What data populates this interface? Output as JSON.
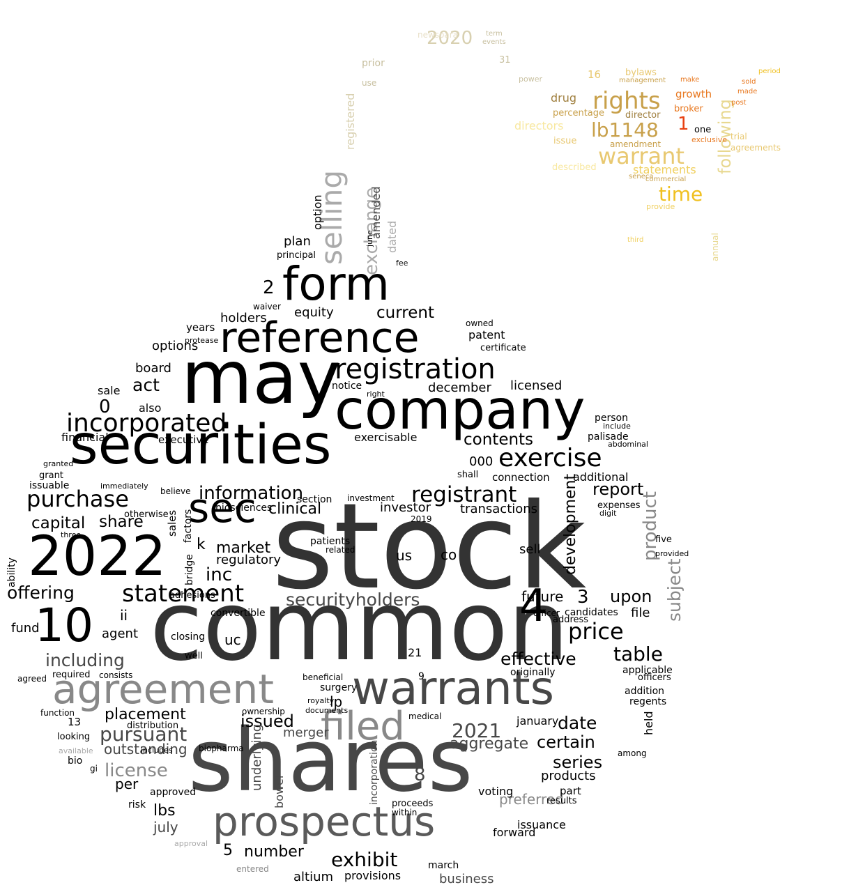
{
  "words": [
    {
      "text": "stock",
      "color": "#333333"
    },
    {
      "text": "common",
      "color": "#333333"
    },
    {
      "text": "shares",
      "color": "#474747"
    },
    {
      "text": "may",
      "color": "#000000"
    },
    {
      "text": "securities",
      "color": "#000000"
    },
    {
      "text": "company",
      "color": "#000000"
    },
    {
      "text": "form",
      "color": "#000000"
    },
    {
      "text": "reference",
      "color": "#000000"
    },
    {
      "text": "2022",
      "color": "#000000"
    },
    {
      "text": "agreement",
      "color": "#888888"
    },
    {
      "text": "warrants",
      "color": "#474747"
    },
    {
      "text": "prospectus",
      "color": "#5a5a5a"
    },
    {
      "text": "filed",
      "color": "#888888"
    },
    {
      "text": "registration",
      "color": "#000000"
    },
    {
      "text": "10",
      "color": "#000000"
    },
    {
      "text": "4",
      "color": "#000000"
    },
    {
      "text": "sec",
      "color": "#000000"
    },
    {
      "text": "exercise",
      "color": "#000000"
    },
    {
      "text": "incorporated",
      "color": "#000000"
    },
    {
      "text": "purchase",
      "color": "#000000"
    },
    {
      "text": "statement",
      "color": "#000000"
    },
    {
      "text": "registrant",
      "color": "#000000"
    },
    {
      "text": "information",
      "color": "#000000"
    },
    {
      "text": "securityholders",
      "color": "#474747"
    },
    {
      "text": "price",
      "color": "#000000"
    },
    {
      "text": "table",
      "color": "#000000"
    },
    {
      "text": "exhibit",
      "color": "#000000"
    },
    {
      "text": "pursuant",
      "color": "#474747"
    },
    {
      "text": "including",
      "color": "#474747"
    },
    {
      "text": "license",
      "color": "#888888"
    },
    {
      "text": "selling",
      "color": "#aaaaaa"
    },
    {
      "text": "exchange",
      "color": "#aaaaaa"
    },
    {
      "text": "rights",
      "color": "#c8a04a"
    },
    {
      "text": "warrant",
      "color": "#e8c870"
    },
    {
      "text": "lb1148",
      "color": "#c8a04a"
    },
    {
      "text": "time",
      "color": "#f0c020"
    },
    {
      "text": "2020",
      "color": "#d8d0b0"
    },
    {
      "text": "following",
      "color": "#e8d890"
    },
    {
      "text": "contents",
      "color": "#000000"
    },
    {
      "text": "effective",
      "color": "#000000"
    },
    {
      "text": "date",
      "color": "#000000"
    },
    {
      "text": "offering",
      "color": "#000000"
    },
    {
      "text": "capital",
      "color": "#000000"
    },
    {
      "text": "share",
      "color": "#000000"
    },
    {
      "text": "current",
      "color": "#000000"
    },
    {
      "text": "act",
      "color": "#000000"
    },
    {
      "text": "inc",
      "color": "#000000"
    },
    {
      "text": "clinical",
      "color": "#000000"
    },
    {
      "text": "report",
      "color": "#000000"
    },
    {
      "text": "upon",
      "color": "#000000"
    },
    {
      "text": "certain",
      "color": "#000000"
    },
    {
      "text": "series",
      "color": "#000000"
    },
    {
      "text": "placement",
      "color": "#000000"
    },
    {
      "text": "issued",
      "color": "#000000"
    },
    {
      "text": "number",
      "color": "#000000"
    },
    {
      "text": "aggregate",
      "color": "#474747"
    },
    {
      "text": "2021",
      "color": "#474747"
    },
    {
      "text": "product",
      "color": "#888888"
    },
    {
      "text": "subject",
      "color": "#888888"
    },
    {
      "text": "development",
      "color": "#000000"
    },
    {
      "text": "sell",
      "color": "#000000"
    },
    {
      "text": "market",
      "color": "#000000"
    },
    {
      "text": "financial",
      "color": "#000000"
    },
    {
      "text": "options",
      "color": "#000000"
    },
    {
      "text": "board",
      "color": "#000000"
    },
    {
      "text": "equity",
      "color": "#000000"
    },
    {
      "text": "holders",
      "color": "#000000"
    },
    {
      "text": "patent",
      "color": "#000000"
    },
    {
      "text": "licensed",
      "color": "#000000"
    },
    {
      "text": "december",
      "color": "#000000"
    },
    {
      "text": "exercisable",
      "color": "#000000"
    },
    {
      "text": "connection",
      "color": "#000000"
    },
    {
      "text": "additional",
      "color": "#000000"
    },
    {
      "text": "transactions",
      "color": "#000000"
    },
    {
      "text": "investor",
      "color": "#000000"
    },
    {
      "text": "regulatory",
      "color": "#000000"
    },
    {
      "text": "agent",
      "color": "#000000"
    },
    {
      "text": "fund",
      "color": "#000000"
    },
    {
      "text": "per",
      "color": "#000000"
    },
    {
      "text": "lbs",
      "color": "#000000"
    },
    {
      "text": "july",
      "color": "#474747"
    },
    {
      "text": "merger",
      "color": "#474747"
    },
    {
      "text": "business",
      "color": "#474747"
    },
    {
      "text": "preferred",
      "color": "#888888"
    },
    {
      "text": "future",
      "color": "#000000"
    },
    {
      "text": "file",
      "color": "#000000"
    },
    {
      "text": "products",
      "color": "#000000"
    },
    {
      "text": "held",
      "color": "#000000"
    },
    {
      "text": "underlying",
      "color": "#474747"
    },
    {
      "text": "bowel",
      "color": "#474747"
    },
    {
      "text": "outstanding",
      "color": "#474747"
    },
    {
      "text": "plan",
      "color": "#000000"
    },
    {
      "text": "option",
      "color": "#000000"
    },
    {
      "text": "amended",
      "color": "#474747"
    },
    {
      "text": "dated",
      "color": "#aaaaaa"
    },
    {
      "text": "registered",
      "color": "#d8d0b0"
    },
    {
      "text": "statements",
      "color": "#f0d060"
    },
    {
      "text": "directors",
      "color": "#f8e8a0"
    },
    {
      "text": "drug",
      "color": "#a08040"
    },
    {
      "text": "growth",
      "color": "#e87820"
    },
    {
      "text": "broker",
      "color": "#e87820"
    },
    {
      "text": "one",
      "color": "#000000"
    },
    {
      "text": "trial",
      "color": "#e8c870"
    },
    {
      "text": "agreements",
      "color": "#e8c870"
    },
    {
      "text": "bylaws",
      "color": "#e8c870"
    },
    {
      "text": "16",
      "color": "#e8c870"
    },
    {
      "text": "annual",
      "color": "#e8d890"
    },
    {
      "text": "prior",
      "color": "#c8c0a0"
    },
    {
      "text": "newsoara",
      "color": "#e8e0c8"
    },
    {
      "text": "use",
      "color": "#c8c0a0"
    },
    {
      "text": "31",
      "color": "#c8c0a0"
    },
    {
      "text": "term",
      "color": "#c8c0a0"
    },
    {
      "text": "events",
      "color": "#c8c0a0"
    },
    {
      "text": "percentage",
      "color": "#c8a04a"
    },
    {
      "text": "issue",
      "color": "#e8c870"
    },
    {
      "text": "amendment",
      "color": "#c8a04a"
    },
    {
      "text": "described",
      "color": "#f8e8a0"
    },
    {
      "text": "director",
      "color": "#a08040"
    },
    {
      "text": "provide",
      "color": "#f0d060"
    },
    {
      "text": "third",
      "color": "#f0d060"
    },
    {
      "text": "commercial",
      "color": "#c8a04a"
    },
    {
      "text": "seneca",
      "color": "#c8a04a"
    },
    {
      "text": "exclusive",
      "color": "#e87820"
    },
    {
      "text": "make",
      "color": "#e87820"
    },
    {
      "text": "post",
      "color": "#e87820"
    },
    {
      "text": "made",
      "color": "#e87820"
    },
    {
      "text": "sold",
      "color": "#e87820"
    },
    {
      "text": "period",
      "color": "#f0c020"
    },
    {
      "text": "management",
      "color": "#c8a04a"
    },
    {
      "text": "power",
      "color": "#c8c0a0"
    },
    {
      "text": "2",
      "color": "#000000"
    },
    {
      "text": "0",
      "color": "#000000"
    },
    {
      "text": "3",
      "color": "#000000"
    },
    {
      "text": "5",
      "color": "#000000"
    },
    {
      "text": "8",
      "color": "#474747"
    },
    {
      "text": "9",
      "color": "#000000"
    },
    {
      "text": "13",
      "color": "#000000"
    },
    {
      "text": "21",
      "color": "#000000"
    },
    {
      "text": "k",
      "color": "#000000"
    },
    {
      "text": "ii",
      "color": "#000000"
    },
    {
      "text": "uc",
      "color": "#000000"
    },
    {
      "text": "us",
      "color": "#000000"
    },
    {
      "text": "co",
      "color": "#000000"
    },
    {
      "text": "lp",
      "color": "#000000"
    },
    {
      "text": "000",
      "color": "#000000"
    },
    {
      "text": "altium",
      "color": "#000000"
    },
    {
      "text": "march",
      "color": "#000000"
    },
    {
      "text": "provisions",
      "color": "#000000"
    },
    {
      "text": "entered",
      "color": "#888888"
    },
    {
      "text": "january",
      "color": "#000000"
    },
    {
      "text": "issuance",
      "color": "#000000"
    },
    {
      "text": "forward",
      "color": "#000000"
    },
    {
      "text": "voting",
      "color": "#000000"
    },
    {
      "text": "part",
      "color": "#000000"
    },
    {
      "text": "results",
      "color": "#000000"
    },
    {
      "text": "originally",
      "color": "#000000"
    },
    {
      "text": "applicable",
      "color": "#000000"
    },
    {
      "text": "officers",
      "color": "#000000"
    },
    {
      "text": "addition",
      "color": "#000000"
    },
    {
      "text": "regents",
      "color": "#000000"
    },
    {
      "text": "among",
      "color": "#000000"
    },
    {
      "text": "person",
      "color": "#000000"
    },
    {
      "text": "include",
      "color": "#000000"
    },
    {
      "text": "palisade",
      "color": "#000000"
    },
    {
      "text": "abdominal",
      "color": "#000000"
    },
    {
      "text": "expenses",
      "color": "#000000"
    },
    {
      "text": "digit",
      "color": "#000000"
    },
    {
      "text": "five",
      "color": "#000000"
    },
    {
      "text": "provided",
      "color": "#000000"
    },
    {
      "text": "candidates",
      "color": "#000000"
    },
    {
      "text": "address",
      "color": "#000000"
    },
    {
      "text": "officer",
      "color": "#000000"
    },
    {
      "text": "2019",
      "color": "#000000"
    },
    {
      "text": "patients",
      "color": "#000000"
    },
    {
      "text": "related",
      "color": "#000000"
    },
    {
      "text": "section",
      "color": "#000000"
    },
    {
      "text": "investment",
      "color": "#000000"
    },
    {
      "text": "biosciences",
      "color": "#000000"
    },
    {
      "text": "notice",
      "color": "#000000"
    },
    {
      "text": "right",
      "color": "#000000"
    },
    {
      "text": "shall",
      "color": "#000000"
    },
    {
      "text": "owned",
      "color": "#000000"
    },
    {
      "text": "certificate",
      "color": "#000000"
    },
    {
      "text": "also",
      "color": "#000000"
    },
    {
      "text": "sale",
      "color": "#000000"
    },
    {
      "text": "executive",
      "color": "#000000"
    },
    {
      "text": "years",
      "color": "#000000"
    },
    {
      "text": "protease",
      "color": "#000000"
    },
    {
      "text": "waiver",
      "color": "#000000"
    },
    {
      "text": "principal",
      "color": "#000000"
    },
    {
      "text": "fee",
      "color": "#000000"
    },
    {
      "text": "june",
      "color": "#000000"
    },
    {
      "text": "granted",
      "color": "#000000"
    },
    {
      "text": "grant",
      "color": "#000000"
    },
    {
      "text": "issuable",
      "color": "#000000"
    },
    {
      "text": "immediately",
      "color": "#000000"
    },
    {
      "text": "otherwise",
      "color": "#000000"
    },
    {
      "text": "believe",
      "color": "#000000"
    },
    {
      "text": "sales",
      "color": "#000000"
    },
    {
      "text": "factors",
      "color": "#000000"
    },
    {
      "text": "bridge",
      "color": "#000000"
    },
    {
      "text": "three",
      "color": "#000000"
    },
    {
      "text": "ability",
      "color": "#000000"
    },
    {
      "text": "adhesions",
      "color": "#000000"
    },
    {
      "text": "convertible",
      "color": "#000000"
    },
    {
      "text": "closing",
      "color": "#000000"
    },
    {
      "text": "well",
      "color": "#000000"
    },
    {
      "text": "required",
      "color": "#000000"
    },
    {
      "text": "consists",
      "color": "#000000"
    },
    {
      "text": "agreed",
      "color": "#000000"
    },
    {
      "text": "function",
      "color": "#000000"
    },
    {
      "text": "looking",
      "color": "#000000"
    },
    {
      "text": "bio",
      "color": "#000000"
    },
    {
      "text": "gi",
      "color": "#000000"
    },
    {
      "text": "risk",
      "color": "#000000"
    },
    {
      "text": "approved",
      "color": "#000000"
    },
    {
      "text": "includes",
      "color": "#000000"
    },
    {
      "text": "distribution",
      "color": "#000000"
    },
    {
      "text": "biopharma",
      "color": "#000000"
    },
    {
      "text": "ownership",
      "color": "#000000"
    },
    {
      "text": "surgery",
      "color": "#000000"
    },
    {
      "text": "beneficial",
      "color": "#000000"
    },
    {
      "text": "proceeds",
      "color": "#000000"
    },
    {
      "text": "within",
      "color": "#000000"
    },
    {
      "text": "documents",
      "color": "#000000"
    },
    {
      "text": "royalty",
      "color": "#000000"
    },
    {
      "text": "medical",
      "color": "#000000"
    },
    {
      "text": "incorporation",
      "color": "#474747"
    },
    {
      "text": "approval",
      "color": "#aaaaaa"
    },
    {
      "text": "available",
      "color": "#aaaaaa"
    },
    {
      "text": "1",
      "color": "#e84010"
    }
  ]
}
